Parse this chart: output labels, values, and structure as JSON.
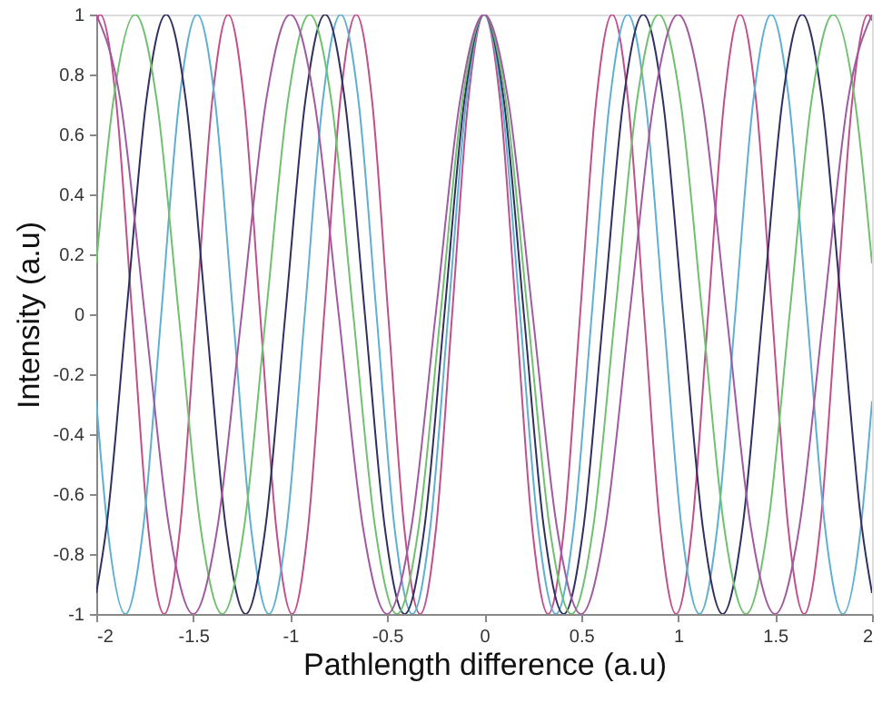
{
  "chart_data": {
    "type": "line",
    "xlabel": "Pathlength difference (a.u)",
    "ylabel": "Intensity (a.u)",
    "xlim": [
      -2,
      2
    ],
    "ylim": [
      -1,
      1
    ],
    "xticks": [
      -2,
      -1.5,
      -1,
      -0.5,
      0,
      0.5,
      1,
      1.5,
      2
    ],
    "yticks": [
      -1,
      -0.8,
      -0.6,
      -0.4,
      -0.2,
      0,
      0.2,
      0.4,
      0.6,
      0.8,
      1
    ],
    "grid": false,
    "marker": "none",
    "line_style": "solid",
    "series": [
      {
        "color": "#c0508c",
        "x": [
          -2,
          -1.98,
          -1.8975,
          -1.815,
          -1.7325,
          -1.65,
          -1.5675,
          -1.485,
          -1.4025,
          -1.32,
          -1.2375,
          -1.155,
          -1.0725,
          -0.99,
          -0.9075,
          -0.825,
          -0.7425,
          -0.66,
          -0.5775,
          -0.495,
          -0.4125,
          -0.33,
          -0.2475,
          -0.165,
          -0.0825,
          0,
          0.0825,
          0.165,
          0.2475,
          0.33,
          0.4125,
          0.495,
          0.5775,
          0.66,
          0.7425,
          0.825,
          0.9075,
          0.99,
          1.0725,
          1.155,
          1.2375,
          1.32,
          1.4025,
          1.485,
          1.5675,
          1.65,
          1.7325,
          1.815,
          1.8975,
          1.98,
          2
        ],
        "values": [
          0.98,
          1,
          0.71,
          0,
          -0.71,
          -1,
          -0.71,
          0,
          0.71,
          1,
          0.71,
          0,
          -0.71,
          -1,
          -0.71,
          0,
          0.71,
          1,
          0.71,
          0,
          -0.71,
          -1,
          -0.71,
          0,
          0.71,
          1,
          0.71,
          0,
          -0.71,
          -1,
          -0.71,
          0,
          0.71,
          1,
          0.71,
          0,
          -0.71,
          -1,
          -0.71,
          0,
          0.71,
          1,
          0.71,
          0,
          -0.71,
          -1,
          -0.71,
          0,
          0.71,
          1,
          0.98
        ]
      },
      {
        "color": "#5fb0d0",
        "x": [
          -2,
          -1.9425,
          -1.85,
          -1.7575,
          -1.665,
          -1.5725,
          -1.48,
          -1.3875,
          -1.295,
          -1.2025,
          -1.11,
          -1.0175,
          -0.925,
          -0.8325,
          -0.74,
          -0.6475,
          -0.555,
          -0.4625,
          -0.37,
          -0.2775,
          -0.185,
          -0.0925,
          0,
          0.0925,
          0.185,
          0.2775,
          0.37,
          0.4625,
          0.555,
          0.6475,
          0.74,
          0.8325,
          0.925,
          1.0175,
          1.11,
          1.2025,
          1.295,
          1.3875,
          1.48,
          1.5725,
          1.665,
          1.7575,
          1.85,
          1.9425,
          2
        ],
        "values": [
          -0.29,
          -0.71,
          -1,
          -0.71,
          0,
          0.71,
          1,
          0.71,
          0,
          -0.71,
          -1,
          -0.71,
          0,
          0.71,
          1,
          0.71,
          0,
          -0.71,
          -1,
          -0.71,
          0,
          0.71,
          1,
          0.71,
          0,
          -0.71,
          -1,
          -0.71,
          0,
          0.71,
          1,
          0.71,
          0,
          -0.71,
          -1,
          -0.71,
          0,
          0.71,
          1,
          0.71,
          0,
          -0.71,
          -1,
          -0.71,
          -0.29
        ]
      },
      {
        "color": "#303060",
        "x": [
          -2,
          -1.9475,
          -1.845,
          -1.7425,
          -1.64,
          -1.5375,
          -1.435,
          -1.3325,
          -1.23,
          -1.1275,
          -1.025,
          -0.9225,
          -0.82,
          -0.7175,
          -0.615,
          -0.5125,
          -0.41,
          -0.3075,
          -0.205,
          -0.1025,
          0,
          0.1025,
          0.205,
          0.3075,
          0.41,
          0.5125,
          0.615,
          0.7175,
          0.82,
          0.9225,
          1.025,
          1.1275,
          1.23,
          1.3325,
          1.435,
          1.5375,
          1.64,
          1.7425,
          1.845,
          1.9475,
          2
        ],
        "values": [
          -0.93,
          -0.71,
          0,
          0.71,
          1,
          0.71,
          0,
          -0.71,
          -1,
          -0.71,
          0,
          0.71,
          1,
          0.71,
          0,
          -0.71,
          -1,
          -0.71,
          0,
          0.71,
          1,
          0.71,
          0,
          -0.71,
          -1,
          -0.71,
          0,
          0.71,
          1,
          0.71,
          0,
          -0.71,
          -1,
          -0.71,
          0,
          0.71,
          1,
          0.71,
          0,
          -0.71,
          -0.93
        ]
      },
      {
        "color": "#70c070",
        "x": [
          -2,
          -1.9125,
          -1.8,
          -1.6875,
          -1.575,
          -1.4625,
          -1.35,
          -1.2375,
          -1.125,
          -1.0125,
          -0.9,
          -0.7875,
          -0.675,
          -0.5625,
          -0.45,
          -0.3375,
          -0.225,
          -0.1125,
          0,
          0.1125,
          0.225,
          0.3375,
          0.45,
          0.5625,
          0.675,
          0.7875,
          0.9,
          1.0125,
          1.125,
          1.2375,
          1.35,
          1.4625,
          1.575,
          1.6875,
          1.8,
          1.9125,
          2
        ],
        "values": [
          0.17,
          0.71,
          1,
          0.71,
          0,
          -0.71,
          -1,
          -0.71,
          0,
          0.71,
          1,
          0.71,
          0,
          -0.71,
          -1,
          -0.71,
          0,
          0.71,
          1,
          0.71,
          0,
          -0.71,
          -1,
          -0.71,
          0,
          0.71,
          1,
          0.71,
          0,
          -0.71,
          -1,
          -0.71,
          0,
          0.71,
          1,
          0.71,
          0.17
        ]
      },
      {
        "color": "#a05aa0",
        "x": [
          -2,
          -1.875,
          -1.75,
          -1.625,
          -1.5,
          -1.375,
          -1.25,
          -1.125,
          -1,
          -0.875,
          -0.75,
          -0.625,
          -0.5,
          -0.375,
          -0.25,
          -0.125,
          0,
          0.125,
          0.25,
          0.375,
          0.5,
          0.625,
          0.75,
          0.875,
          1,
          1.125,
          1.25,
          1.375,
          1.5,
          1.625,
          1.75,
          1.875,
          2
        ],
        "values": [
          1,
          0.71,
          0,
          -0.71,
          -1,
          -0.71,
          0,
          0.71,
          1,
          0.71,
          0,
          -0.71,
          -1,
          -0.71,
          0,
          0.71,
          1,
          0.71,
          0,
          -0.71,
          -1,
          -0.71,
          0,
          0.71,
          1,
          0.71,
          0,
          -0.71,
          -1,
          -0.71,
          0,
          0.71,
          1
        ]
      }
    ]
  }
}
